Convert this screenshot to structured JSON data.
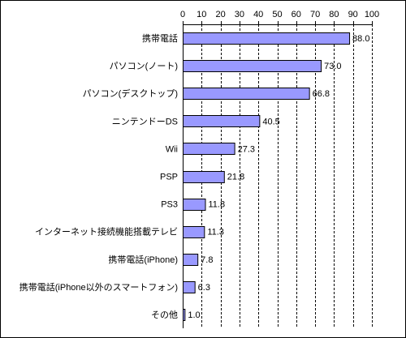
{
  "chart_data": {
    "type": "bar",
    "orientation": "horizontal",
    "title": "",
    "xlabel": "",
    "ylabel": "",
    "xlim": [
      0,
      100
    ],
    "x_ticks": [
      0,
      10,
      20,
      30,
      40,
      50,
      60,
      70,
      80,
      90,
      100
    ],
    "tick_position": "top",
    "grid": "vertical dashed",
    "legend": "none",
    "bar_color": "#9999ff",
    "bar_border_color": "#000000",
    "categories": [
      "携帯電話",
      "パソコン(ノート)",
      "パソコン(デスクトップ)",
      "ニンテンドーDS",
      "Wii",
      "PSP",
      "PS3",
      "インターネット接続機能搭載テレビ",
      "携帯電話(iPhone)",
      "携帯電話(iPhone以外のスマートフォン)",
      "その他"
    ],
    "values": [
      88.0,
      73.0,
      66.8,
      40.5,
      27.3,
      21.8,
      11.8,
      11.3,
      7.8,
      6.3,
      1.0
    ],
    "value_labels": [
      "88.0",
      "73.0",
      "66.8",
      "40.5",
      "27.3",
      "21.8",
      "11.8",
      "11.3",
      "7.8",
      "6.3",
      "1.0"
    ]
  }
}
